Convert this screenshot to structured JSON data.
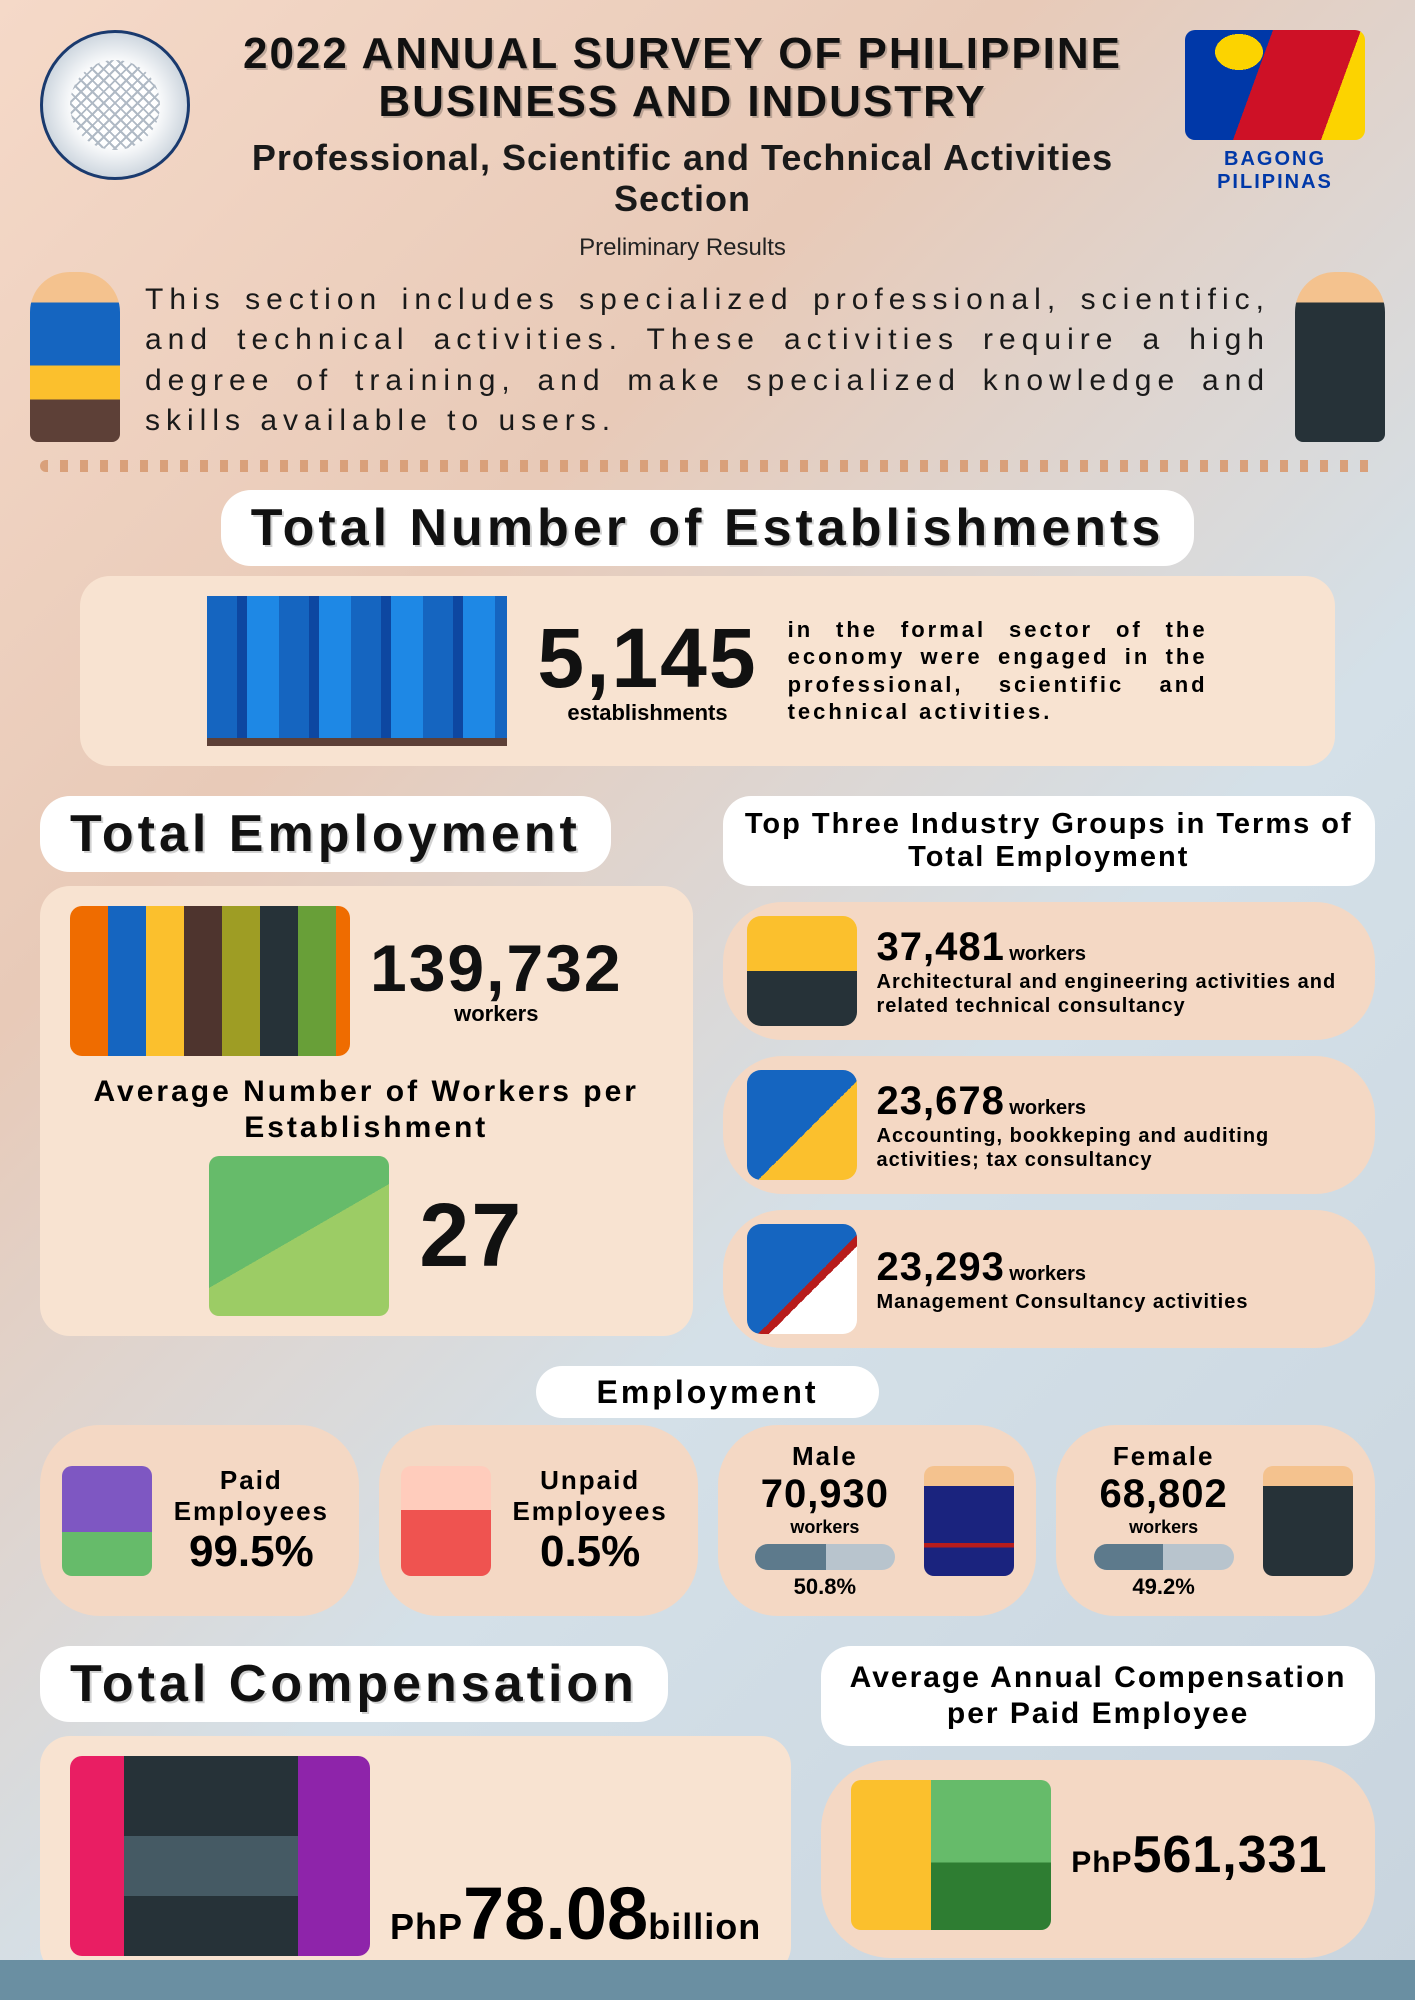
{
  "header": {
    "main_title": "2022 ANNUAL SURVEY OF PHILIPPINE BUSINESS AND INDUSTRY",
    "subtitle": "Professional, Scientific and Technical Activities Section",
    "prelim": "Preliminary Results",
    "bagong": "BAGONG PILIPINAS"
  },
  "intro": "This section includes specialized professional, scientific, and technical activities. These activities require a high degree of training, and make specialized knowledge and skills available to users.",
  "establishments": {
    "title": "Total Number of Establishments",
    "value": "5,145",
    "value_label": "establishments",
    "description": "in the formal sector of the economy were engaged in the professional, scientific and technical activities."
  },
  "employment": {
    "title": "Total Employment",
    "total_value": "139,732",
    "total_label": "workers",
    "avg_title": "Average Number of Workers per Establishment",
    "avg_value": "27"
  },
  "top3": {
    "title": "Top Three Industry Groups in Terms of Total Employment",
    "items": [
      {
        "value": "37,481",
        "label": "workers",
        "desc": "Architectural and engineering activities and related technical consultancy"
      },
      {
        "value": "23,678",
        "label": "workers",
        "desc": "Accounting, bookkeping and auditing activities; tax consultancy"
      },
      {
        "value": "23,293",
        "label": "workers",
        "desc": "Management Consultancy activities"
      }
    ]
  },
  "breakdown": {
    "title": "Employment",
    "paid_label": "Paid Employees",
    "paid_pct": "99.5%",
    "unpaid_label": "Unpaid Employees",
    "unpaid_pct": "0.5%",
    "male_label": "Male",
    "male_value": "70,930",
    "male_workers": "workers",
    "male_pct": "50.8%",
    "male_fill": 50.8,
    "female_label": "Female",
    "female_value": "68,802",
    "female_workers": "workers",
    "female_pct": "49.2%",
    "female_fill": 49.2
  },
  "compensation": {
    "title": "Total Compensation",
    "currency": "PhP",
    "value": "78.08",
    "unit": "billion",
    "avg_title": "Average Annual Compensation per Paid Employee",
    "avg_currency": "PhP",
    "avg_value": "561,331"
  },
  "colors": {
    "card_bg": "#f8e3d1",
    "card_bg2": "#f4d8c4",
    "accent_blue": "#1565c0",
    "text": "#111111"
  }
}
